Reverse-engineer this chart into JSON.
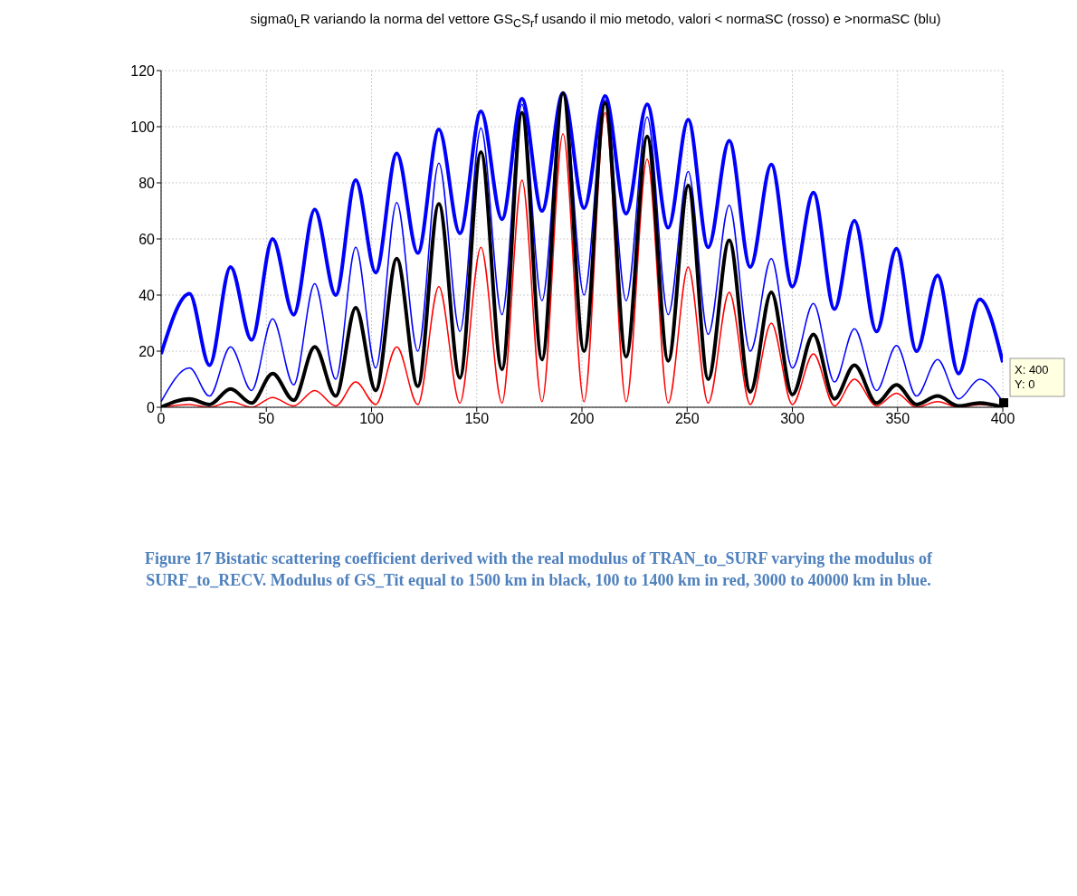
{
  "chart_data": {
    "type": "line",
    "title": "sigma0$_{L}$R variando la norma del vettore GS$_{C}$S$_{r}$f usando il mio metodo, valori < normaSC (rosso) e >normaSC (blu)",
    "x": [
      0,
      13.5,
      23,
      33,
      43,
      53,
      63,
      73,
      83,
      92.5,
      102,
      112,
      122,
      132,
      142,
      152,
      162,
      171.5,
      181,
      191,
      201,
      211,
      221,
      231,
      241,
      250.5,
      260,
      270,
      280,
      290,
      300,
      310,
      320,
      329.5,
      340,
      349.5,
      359,
      369,
      379,
      389,
      400
    ],
    "series": [
      {
        "color": "#0000ff",
        "values": [
          19,
          40.5,
          15,
          50,
          24,
          60,
          33,
          70.5,
          40,
          81,
          48,
          90.5,
          55,
          99,
          62,
          105.5,
          67,
          110,
          70,
          112,
          71,
          111,
          69,
          108,
          64,
          102.5,
          57,
          95,
          50,
          86.5,
          43,
          76.5,
          35,
          66.5,
          27,
          56.5,
          20,
          47,
          12,
          38.5,
          16
        ]
      },
      {
        "color": "#0000ff",
        "values": [
          2,
          14,
          4,
          21.5,
          6,
          31.5,
          8,
          44,
          10,
          57,
          14,
          73,
          20,
          87,
          27,
          99.5,
          33,
          108,
          38,
          112,
          40,
          109.5,
          38,
          103.5,
          33,
          84,
          26,
          72,
          20,
          53,
          14,
          37,
          9,
          28,
          6,
          22,
          4,
          17,
          3,
          10,
          2
        ]
      },
      {
        "color": "#ff0000",
        "values": [
          0,
          1,
          0,
          2,
          0,
          3.5,
          0.5,
          6,
          0.5,
          9,
          1,
          21.5,
          1,
          43,
          1.5,
          57,
          1.5,
          81,
          2,
          97.5,
          2,
          105,
          2,
          88.5,
          1.5,
          50,
          1.5,
          41,
          1,
          30,
          1,
          19,
          0.5,
          10,
          0.5,
          5,
          0,
          2,
          0,
          1,
          0
        ]
      },
      {
        "color": "#000000",
        "values": [
          0,
          3,
          1,
          6.5,
          1.5,
          12,
          2.5,
          21.5,
          4,
          35.5,
          6,
          53,
          7.5,
          72.5,
          10.5,
          91,
          13.5,
          105,
          17,
          112,
          20,
          108.5,
          18,
          96.5,
          16.5,
          79,
          10,
          59.5,
          5.5,
          41,
          4.5,
          26,
          3,
          15,
          1.5,
          8,
          1,
          4,
          0.5,
          1.5,
          0
        ]
      }
    ],
    "xlim": [
      0,
      400
    ],
    "xticks": [
      0,
      50,
      100,
      150,
      200,
      250,
      300,
      350,
      400
    ],
    "ylim": [
      0,
      120
    ],
    "yticks": [
      0,
      20,
      40,
      60,
      80,
      100,
      120
    ],
    "grid": true,
    "marker": "none",
    "line_style": "solid",
    "annotations": [
      {
        "text": "X: 400\nY: 0",
        "x": 400,
        "y": 0
      },
      "Figure 17 Bistatic scattering coefficient derived with the real modulus of TRAN_to_SURF  varying the modulus of SURF_to_RECV.  Modulus of GS_Tit equal to 1500 km in black, 100 to 1400 km in red, 3000 to 40000 km in blue."
    ]
  }
}
